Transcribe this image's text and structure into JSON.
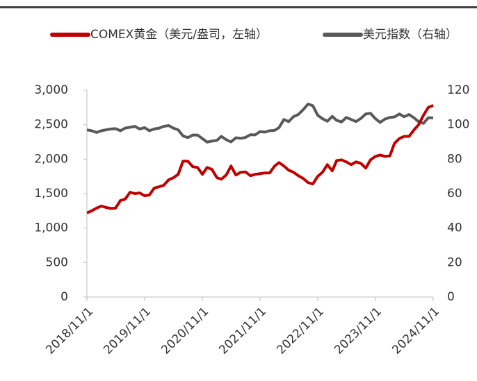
{
  "chart_data": {
    "type": "line",
    "x": [
      "2018/11/1",
      "2018/12/1",
      "2019/1/1",
      "2019/2/1",
      "2019/3/1",
      "2019/4/1",
      "2019/5/1",
      "2019/6/1",
      "2019/7/1",
      "2019/8/1",
      "2019/9/1",
      "2019/10/1",
      "2019/11/1",
      "2019/12/1",
      "2020/1/1",
      "2020/2/1",
      "2020/3/1",
      "2020/4/1",
      "2020/5/1",
      "2020/6/1",
      "2020/7/1",
      "2020/8/1",
      "2020/9/1",
      "2020/10/1",
      "2020/11/1",
      "2020/12/1",
      "2021/1/1",
      "2021/2/1",
      "2021/3/1",
      "2021/4/1",
      "2021/5/1",
      "2021/6/1",
      "2021/7/1",
      "2021/8/1",
      "2021/9/1",
      "2021/10/1",
      "2021/11/1",
      "2021/12/1",
      "2022/1/1",
      "2022/2/1",
      "2022/3/1",
      "2022/4/1",
      "2022/5/1",
      "2022/6/1",
      "2022/7/1",
      "2022/8/1",
      "2022/9/1",
      "2022/10/1",
      "2022/11/1",
      "2022/12/1",
      "2023/1/1",
      "2023/2/1",
      "2023/3/1",
      "2023/4/1",
      "2023/5/1",
      "2023/6/1",
      "2023/7/1",
      "2023/8/1",
      "2023/9/1",
      "2023/10/1",
      "2023/11/1",
      "2023/12/1",
      "2024/1/1",
      "2024/2/1",
      "2024/3/1",
      "2024/4/1",
      "2024/5/1",
      "2024/6/1",
      "2024/7/1",
      "2024/8/1",
      "2024/9/1",
      "2024/10/1",
      "2024/11/1"
    ],
    "series": [
      {
        "name": "COMEX黄金（美元/盎司，左轴）",
        "color": "#c00000",
        "axis": "y",
        "values": [
          1220,
          1250,
          1290,
          1320,
          1300,
          1285,
          1290,
          1400,
          1420,
          1520,
          1500,
          1510,
          1470,
          1480,
          1580,
          1600,
          1620,
          1700,
          1730,
          1780,
          1970,
          1970,
          1890,
          1880,
          1780,
          1880,
          1850,
          1730,
          1710,
          1770,
          1900,
          1770,
          1810,
          1815,
          1760,
          1780,
          1790,
          1800,
          1800,
          1900,
          1950,
          1900,
          1840,
          1810,
          1760,
          1720,
          1660,
          1640,
          1750,
          1810,
          1920,
          1830,
          1980,
          1990,
          1960,
          1920,
          1960,
          1940,
          1870,
          1990,
          2040,
          2060,
          2040,
          2050,
          2230,
          2300,
          2330,
          2330,
          2420,
          2500,
          2640,
          2750,
          2780
        ]
      },
      {
        "name": "美元指数（右轴）",
        "color": "#595959",
        "axis": "y2",
        "values": [
          97,
          96.5,
          95.5,
          96.5,
          97,
          97.5,
          97.7,
          96.5,
          98,
          98.5,
          99,
          97.5,
          98.3,
          96.5,
          97.5,
          98,
          99,
          99.5,
          98,
          97,
          93.5,
          92.5,
          94,
          94,
          91.9,
          89.9,
          90.5,
          90.9,
          93.2,
          91.3,
          90,
          92.4,
          92.1,
          92.6,
          94.2,
          94.1,
          96,
          95.7,
          96.5,
          96.7,
          98.3,
          103,
          101.8,
          104.7,
          105.9,
          108.7,
          112,
          111,
          105.5,
          103.5,
          102,
          104.8,
          102.5,
          101.6,
          104.2,
          103,
          101.8,
          103.6,
          106.2,
          106.6,
          103.5,
          101.3,
          103.3,
          104.2,
          104.5,
          106.2,
          104.6,
          105.9,
          104.1,
          101.7,
          100.8,
          104,
          104
        ]
      }
    ],
    "xlim": [
      "2018/11/1",
      "2024/11/1"
    ],
    "xticks": [
      "2018/11/1",
      "2019/11/1",
      "2020/11/1",
      "2021/11/1",
      "2022/11/1",
      "2023/11/1",
      "2024/11/1"
    ],
    "ylim": [
      0,
      3000
    ],
    "yticks": [
      0,
      500,
      {
        "value": 1000,
        "label": "1,000"
      },
      {
        "value": 1500,
        "label": "1,500"
      },
      {
        "value": 2000,
        "label": "2,000"
      },
      {
        "value": 2500,
        "label": "2,500"
      },
      {
        "value": 3000,
        "label": "3,000"
      }
    ],
    "y2lim": [
      0,
      120
    ],
    "y2ticks": [
      0,
      20,
      40,
      60,
      80,
      100,
      120
    ],
    "legend": "top"
  }
}
